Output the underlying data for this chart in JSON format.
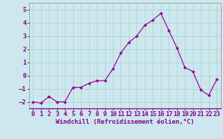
{
  "x": [
    0,
    1,
    2,
    3,
    4,
    5,
    6,
    7,
    8,
    9,
    10,
    11,
    12,
    13,
    14,
    15,
    16,
    17,
    18,
    19,
    20,
    21,
    22,
    23
  ],
  "y": [
    -2.0,
    -2.1,
    -1.6,
    -2.0,
    -2.0,
    -0.9,
    -0.9,
    -0.6,
    -0.4,
    -0.4,
    0.5,
    1.7,
    2.5,
    3.0,
    3.8,
    4.2,
    4.7,
    3.4,
    2.1,
    0.6,
    0.3,
    -1.1,
    -1.5,
    -0.3
  ],
  "line_color": "#990099",
  "marker": "D",
  "markersize": 2.0,
  "linewidth": 0.9,
  "bg_color": "#cce8ee",
  "grid_color": "#aacccc",
  "xlabel": "Windchill (Refroidissement éolien,°C)",
  "xlabel_color": "#880088",
  "tick_color": "#880088",
  "yticks": [
    -2,
    -1,
    0,
    1,
    2,
    3,
    4,
    5
  ],
  "ylim": [
    -2.5,
    5.5
  ],
  "xlim": [
    -0.5,
    23.5
  ],
  "font_size": 6.5
}
